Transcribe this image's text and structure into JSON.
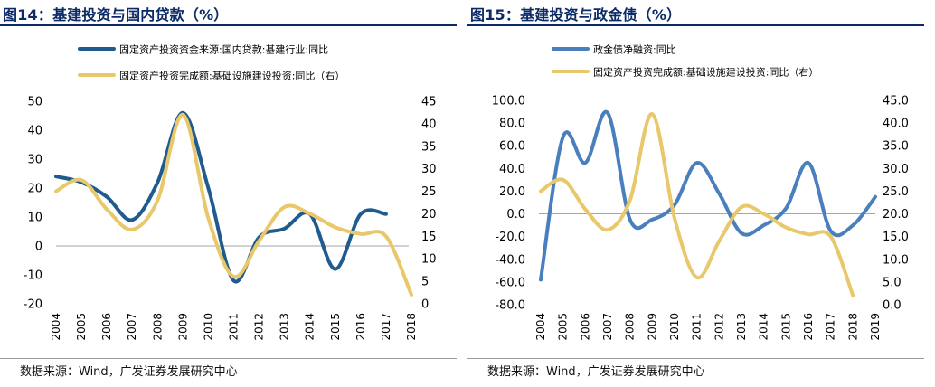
{
  "chart_data": [
    {
      "type": "line",
      "title": "图14：基建投资与国内贷款（%）",
      "source": "数据来源：Wind，广发证券发展研究中心",
      "x": [
        "2004",
        "2005",
        "2006",
        "2007",
        "2008",
        "2009",
        "2010",
        "2011",
        "2012",
        "2013",
        "2014",
        "2015",
        "2016",
        "2017",
        "2018"
      ],
      "ylim_left": [
        -20,
        50
      ],
      "yticks_left": [
        "-20",
        "-10",
        "0",
        "10",
        "20",
        "30",
        "40",
        "50"
      ],
      "ylim_right": [
        0,
        45
      ],
      "yticks_right": [
        "0",
        "5",
        "10",
        "15",
        "20",
        "25",
        "30",
        "35",
        "40",
        "45"
      ],
      "series": [
        {
          "name": "固定资产投资资金来源:国内贷款:基建行业:同比",
          "axis": "left",
          "color": "#1f5b8e",
          "values": [
            24,
            22,
            17,
            9,
            22,
            46,
            20,
            -12,
            3,
            6,
            11,
            -8,
            11,
            11,
            null
          ]
        },
        {
          "name": "固定资产投资完成额:基础设施建设投资:同比（右）",
          "axis": "right",
          "color": "#e8c86a",
          "values": [
            25,
            27.5,
            21,
            16.5,
            23,
            42,
            19,
            6,
            14,
            21.5,
            20,
            17,
            15.5,
            15,
            2
          ]
        }
      ]
    },
    {
      "type": "line",
      "title": "图15：基建投资与政金债（%）",
      "source": "数据来源：Wind，广发证券发展研究中心",
      "x": [
        "2004",
        "2005",
        "2006",
        "2007",
        "2008",
        "2009",
        "2010",
        "2011",
        "2012",
        "2013",
        "2014",
        "2015",
        "2016",
        "2017",
        "2018",
        "2019"
      ],
      "ylim_left": [
        -80,
        100
      ],
      "yticks_left": [
        "-80.0",
        "-60.0",
        "-40.0",
        "-20.0",
        "0.0",
        "20.0",
        "40.0",
        "60.0",
        "80.0",
        "100.0"
      ],
      "ylim_right": [
        0,
        45
      ],
      "yticks_right": [
        "0.0",
        "5.0",
        "10.0",
        "15.0",
        "20.0",
        "25.0",
        "30.0",
        "35.0",
        "40.0",
        "45.0"
      ],
      "series": [
        {
          "name": "政金债净融资:同比",
          "axis": "left",
          "color": "#4a7fbd",
          "values": [
            -58,
            68,
            45,
            89,
            -5,
            -5,
            8,
            45,
            18,
            -17,
            -10,
            5,
            45,
            -15,
            -10,
            15
          ]
        },
        {
          "name": "固定资产投资完成额:基础设施建设投资:同比（右）",
          "axis": "right",
          "color": "#e8c86a",
          "values": [
            25,
            27.5,
            21,
            16.5,
            23,
            42,
            19,
            6,
            14,
            21.5,
            20,
            17,
            15.5,
            15,
            2,
            null
          ]
        }
      ]
    }
  ]
}
